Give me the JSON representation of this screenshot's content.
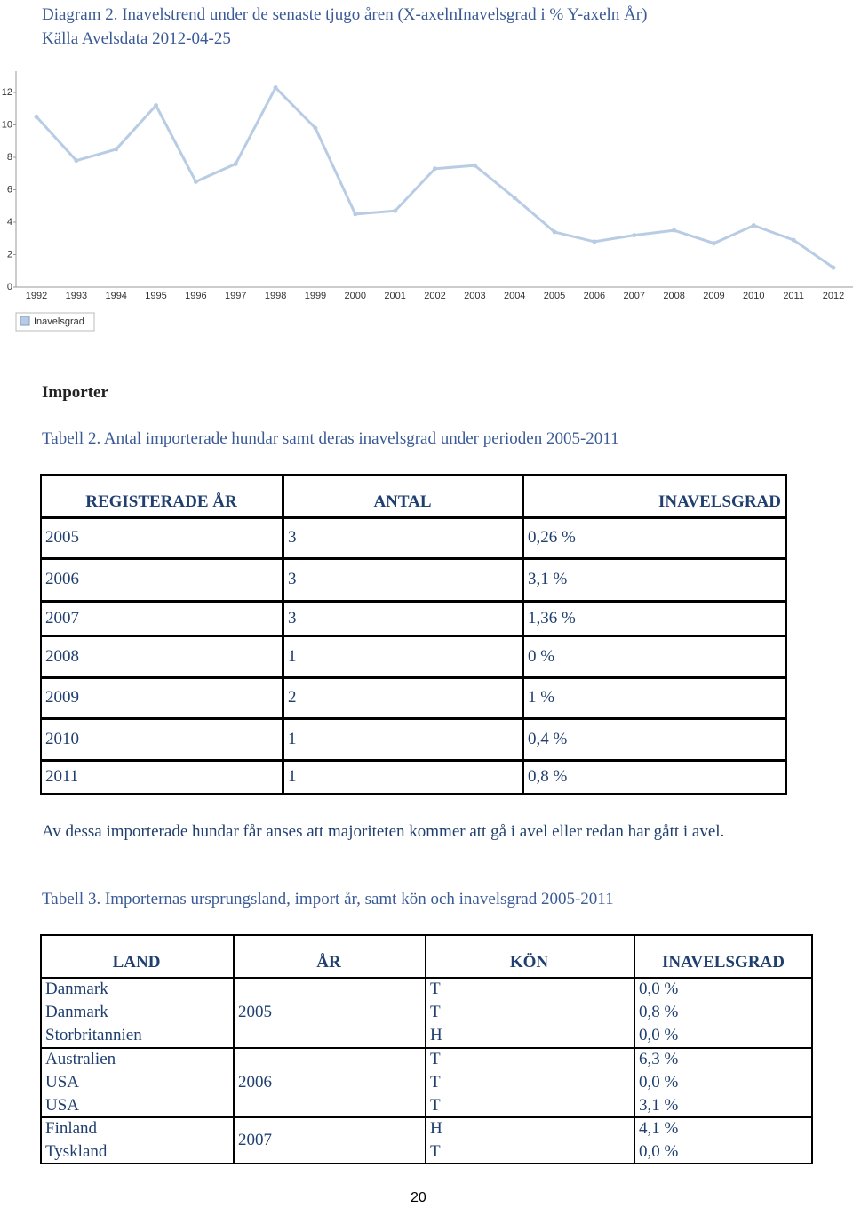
{
  "caption": {
    "line1": "Diagram 2. Inavelstrend under de senaste tjugo åren (X-axelnInavelsgrad i % Y-axeln År)",
    "line2": "Källa Avelsdata 2012-04-25"
  },
  "chart_data": {
    "type": "line",
    "categories": [
      "1992",
      "1993",
      "1994",
      "1995",
      "1996",
      "1997",
      "1998",
      "1999",
      "2000",
      "2001",
      "2002",
      "2003",
      "2004",
      "2005",
      "2006",
      "2007",
      "2008",
      "2009",
      "2010",
      "2011",
      "2012"
    ],
    "series": [
      {
        "name": "Inavelsgrad",
        "color": "#b8cce4",
        "values": [
          10.5,
          7.8,
          8.5,
          11.2,
          6.5,
          7.6,
          12.3,
          9.8,
          4.5,
          4.7,
          7.3,
          7.5,
          5.5,
          3.4,
          2.8,
          3.2,
          3.5,
          2.7,
          3.8,
          2.9,
          1.2
        ]
      }
    ],
    "ylim": [
      0,
      13
    ],
    "yticks": [
      0,
      2,
      4,
      6,
      8,
      10,
      12
    ],
    "legend": "bottom-left"
  },
  "section": "Importer",
  "table1": {
    "caption": "Tabell 2. Antal importerade hundar samt deras inavelsgrad under perioden 2005-2011",
    "header": [
      "REGISTERADE ÅR",
      "ANTAL",
      "INAVELSGRAD"
    ],
    "rows": [
      [
        "2005",
        "3",
        "0,26 %"
      ],
      [
        "2006",
        "3",
        "3,1 %"
      ],
      [
        "2007",
        "3",
        "1,36 %"
      ],
      [
        "2008",
        "1",
        "0 %"
      ],
      [
        "2009",
        "2",
        "1 %"
      ],
      [
        "2010",
        "1",
        "0,4 %"
      ],
      [
        "2011",
        "1",
        "0,8 %"
      ]
    ]
  },
  "paragraph": "Av dessa importerade hundar får anses att majoriteten kommer att gå i avel eller redan har gått i avel.",
  "table2": {
    "caption": "Tabell 3. Importernas ursprungsland, import år, samt kön och inavelsgrad 2005-2011",
    "header": [
      "LAND",
      "ÅR",
      "KÖN",
      "INAVELSGRAD"
    ],
    "groups": [
      {
        "year": "2005",
        "rows": [
          [
            "Danmark",
            "T",
            "0,0 %"
          ],
          [
            "Danmark",
            "T",
            "0,8 %"
          ],
          [
            "Storbritannien",
            "H",
            "0,0 %"
          ]
        ]
      },
      {
        "year": "2006",
        "rows": [
          [
            "Australien",
            "T",
            "6,3 %"
          ],
          [
            "USA",
            "T",
            "0,0 %"
          ],
          [
            "USA",
            "T",
            "3,1 %"
          ]
        ]
      },
      {
        "year": "2007",
        "rows": [
          [
            "Finland",
            "H",
            "4,1 %"
          ],
          [
            "Tyskland",
            "T",
            "0,0 %"
          ]
        ]
      }
    ]
  },
  "page_number": "20"
}
